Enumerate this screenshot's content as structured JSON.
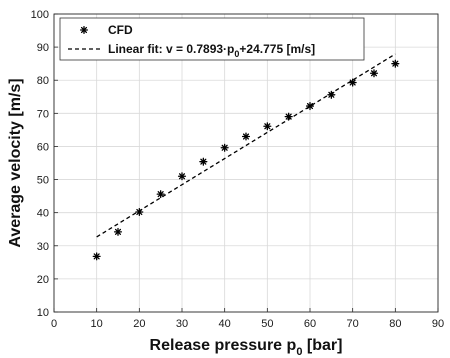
{
  "chart_data": {
    "type": "scatter",
    "xlabel": "Release pressure",
    "xlabel_sub": "0",
    "xlabel_unit": " [bar]",
    "ylabel": "Average velocity [m/s]",
    "xlim": [
      0,
      90
    ],
    "ylim": [
      10,
      100
    ],
    "xticks": [
      0,
      10,
      20,
      30,
      40,
      50,
      60,
      70,
      80,
      90
    ],
    "yticks": [
      10,
      20,
      30,
      40,
      50,
      60,
      70,
      80,
      90,
      100
    ],
    "grid": true,
    "legend_position": "top-left",
    "series": [
      {
        "name": "CFD",
        "marker": "asterisk",
        "color": "#000000",
        "x": [
          10,
          15,
          20,
          25,
          30,
          35,
          40,
          45,
          50,
          55,
          60,
          65,
          70,
          75,
          80
        ],
        "y": [
          26.8,
          34.2,
          40.2,
          45.6,
          51.0,
          55.4,
          59.6,
          63.0,
          66.1,
          69.0,
          72.2,
          75.6,
          79.3,
          82.1,
          85.0
        ]
      },
      {
        "name": "Linear fit",
        "legend_prefix": "Linear fit: v = 0.7893·p",
        "legend_sub": "0",
        "legend_suffix": "+24.775 [m/s]",
        "style": "dashed",
        "color": "#000000",
        "slope": 0.7893,
        "intercept": 24.775,
        "x": [
          10,
          80
        ]
      }
    ]
  }
}
